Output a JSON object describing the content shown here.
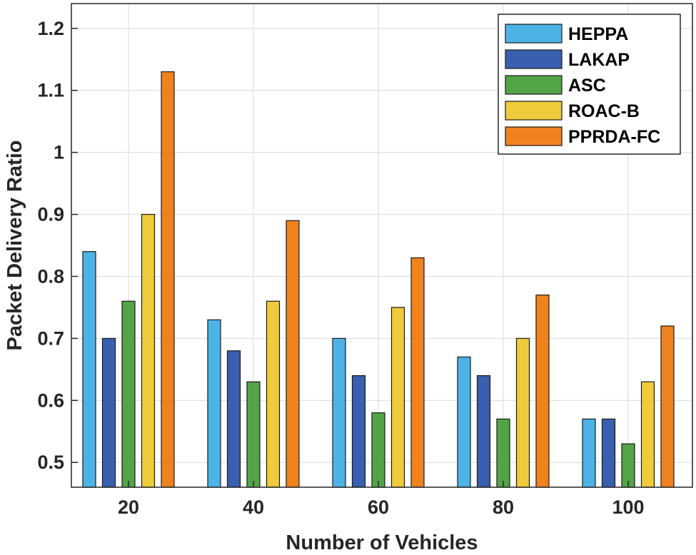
{
  "chart_data": {
    "type": "bar",
    "title": "",
    "xlabel": "Number of Vehicles",
    "ylabel": "Packet Delivery Ratio",
    "categories": [
      "20",
      "40",
      "60",
      "80",
      "100"
    ],
    "ylim": [
      0.46,
      1.24
    ],
    "yticks": [
      0.5,
      0.6,
      0.7,
      0.8,
      0.9,
      1,
      1.1,
      1.2
    ],
    "ytick_labels": [
      "0.5",
      "0.6",
      "0.7",
      "0.8",
      "0.9",
      "1",
      "1.1",
      "1.2"
    ],
    "grid": true,
    "legend_position": "top-right",
    "series": [
      {
        "name": "HEPPA",
        "color": "#4DB3E6",
        "values": [
          0.84,
          0.73,
          0.7,
          0.67,
          0.57
        ]
      },
      {
        "name": "LAKAP",
        "color": "#3A5FAE",
        "values": [
          0.7,
          0.68,
          0.64,
          0.64,
          0.57
        ]
      },
      {
        "name": "ASC",
        "color": "#52A447",
        "values": [
          0.76,
          0.63,
          0.58,
          0.57,
          0.53
        ]
      },
      {
        "name": "ROAC-B",
        "color": "#EDCB3A",
        "values": [
          0.9,
          0.76,
          0.75,
          0.7,
          0.63
        ]
      },
      {
        "name": "PPRDA-FC",
        "color": "#F0821E",
        "values": [
          1.13,
          0.89,
          0.83,
          0.77,
          0.72
        ]
      }
    ]
  }
}
